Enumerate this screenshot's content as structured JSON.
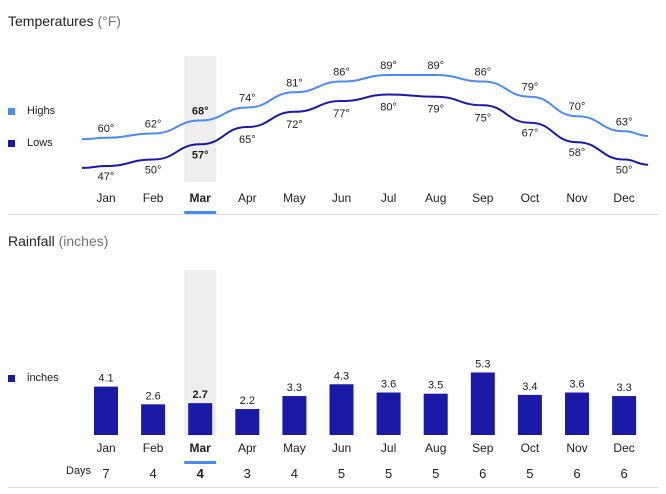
{
  "temperature": {
    "title": "Temperatures",
    "unit": "(°F)",
    "legend_highs": "Highs",
    "legend_lows": "Lows"
  },
  "rainfall": {
    "title": "Rainfall",
    "unit": "(inches)",
    "legend": "inches"
  },
  "days_label": "Days",
  "selected_month": "Mar",
  "colors": {
    "highs": "#4c8bf5",
    "lows": "#1a1aa6",
    "bars": "#1a1aa6",
    "highlight": "#eeeeee",
    "selected_underline": "#4c8bf5"
  },
  "chart_data": [
    {
      "type": "line",
      "x": [
        "Jan",
        "Feb",
        "Mar",
        "Apr",
        "May",
        "Jun",
        "Jul",
        "Aug",
        "Sep",
        "Oct",
        "Nov",
        "Dec"
      ],
      "series": [
        {
          "name": "Highs",
          "values": [
            60,
            62,
            68,
            74,
            81,
            86,
            89,
            89,
            86,
            79,
            70,
            63
          ]
        },
        {
          "name": "Lows",
          "values": [
            47,
            50,
            57,
            65,
            72,
            77,
            80,
            79,
            75,
            67,
            58,
            50
          ]
        }
      ],
      "value_suffix": "°",
      "legend": "left",
      "grid": false
    },
    {
      "type": "bar",
      "categories": [
        "Jan",
        "Feb",
        "Mar",
        "Apr",
        "May",
        "Jun",
        "Jul",
        "Aug",
        "Sep",
        "Oct",
        "Nov",
        "Dec"
      ],
      "values": [
        4.1,
        2.6,
        2.7,
        2.2,
        3.3,
        4.3,
        3.6,
        3.5,
        5.3,
        3.4,
        3.6,
        3.3
      ],
      "days": [
        7,
        4,
        4,
        3,
        4,
        5,
        5,
        5,
        6,
        5,
        6,
        6
      ],
      "legend": "left",
      "grid": false
    }
  ]
}
